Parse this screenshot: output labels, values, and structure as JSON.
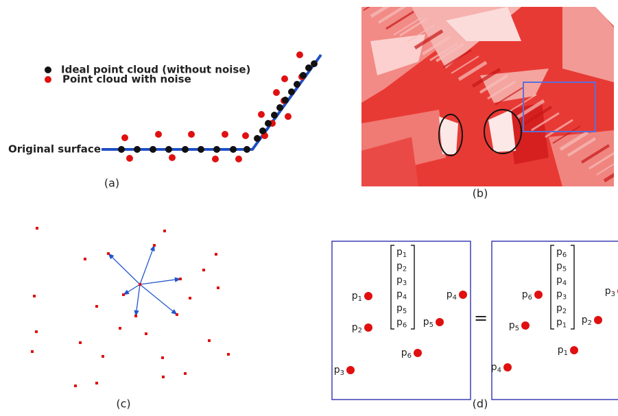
{
  "panel_a": {
    "legend": [
      "Ideal point cloud (without noise)",
      "Point cloud with noise"
    ],
    "surface_label": "Original surface",
    "caption": "(a)"
  },
  "panel_b": {
    "caption": "(b)"
  },
  "panel_c": {
    "caption": "(c)"
  },
  "panel_d": {
    "caption": "(d)",
    "equals": "=",
    "point_letter": "p",
    "left": {
      "points": [
        "1",
        "2",
        "3",
        "4",
        "5",
        "6"
      ],
      "vector": [
        "1",
        "2",
        "3",
        "4",
        "5",
        "6"
      ]
    },
    "right": {
      "points": [
        "6",
        "5",
        "4",
        "3",
        "2",
        "1"
      ],
      "vector": [
        "6",
        "5",
        "4",
        "3",
        "2",
        "1"
      ]
    }
  }
}
